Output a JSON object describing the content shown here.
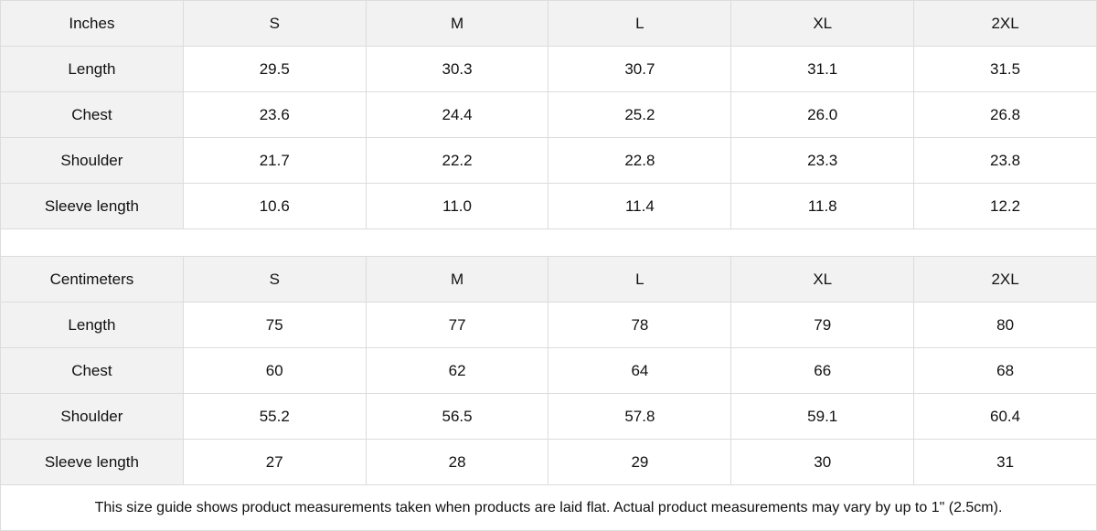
{
  "inches": {
    "unit_label": "Inches",
    "sizes": [
      "S",
      "M",
      "L",
      "XL",
      "2XL"
    ],
    "rows": [
      {
        "label": "Length",
        "values": [
          "29.5",
          "30.3",
          "30.7",
          "31.1",
          "31.5"
        ]
      },
      {
        "label": "Chest",
        "values": [
          "23.6",
          "24.4",
          "25.2",
          "26.0",
          "26.8"
        ]
      },
      {
        "label": "Shoulder",
        "values": [
          "21.7",
          "22.2",
          "22.8",
          "23.3",
          "23.8"
        ]
      },
      {
        "label": "Sleeve length",
        "values": [
          "10.6",
          "11.0",
          "11.4",
          "11.8",
          "12.2"
        ]
      }
    ]
  },
  "centimeters": {
    "unit_label": "Centimeters",
    "sizes": [
      "S",
      "M",
      "L",
      "XL",
      "2XL"
    ],
    "rows": [
      {
        "label": "Length",
        "values": [
          "75",
          "77",
          "78",
          "79",
          "80"
        ]
      },
      {
        "label": "Chest",
        "values": [
          "60",
          "62",
          "64",
          "66",
          "68"
        ]
      },
      {
        "label": "Shoulder",
        "values": [
          "55.2",
          "56.5",
          "57.8",
          "59.1",
          "60.4"
        ]
      },
      {
        "label": "Sleeve length",
        "values": [
          "27",
          "28",
          "29",
          "30",
          "31"
        ]
      }
    ]
  },
  "note": "This size guide shows product measurements taken when products are laid flat.  Actual product measurements may vary by up to 1\" (2.5cm)."
}
